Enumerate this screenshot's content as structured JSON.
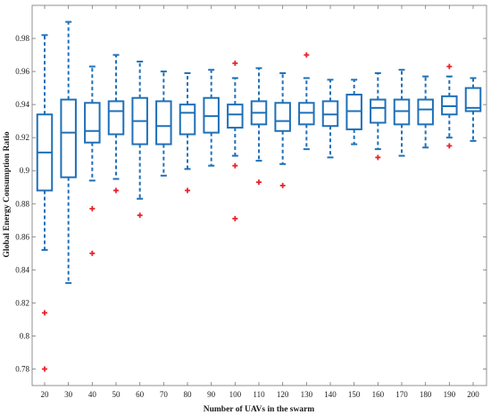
{
  "chart_data": {
    "type": "boxplot",
    "title": "",
    "xlabel": "Number of UAVs in the swarm",
    "ylabel": "Global Energy Consumption  Ratio",
    "ylim": [
      0.77,
      1.0
    ],
    "yticks": [
      0.78,
      0.8,
      0.82,
      0.84,
      0.86,
      0.88,
      0.9,
      0.92,
      0.94,
      0.96,
      0.98
    ],
    "ytick_labels": [
      "0.78",
      "0.8",
      "0.82",
      "0.84",
      "0.86",
      "0.88",
      "0.9",
      "0.92",
      "0.94",
      "0.96",
      "0.98"
    ],
    "grid": false,
    "colors": {
      "box": "#1f70b8",
      "outlier": "#e8232a",
      "axis": "#777777"
    },
    "categories": [
      "20",
      "30",
      "40",
      "50",
      "60",
      "70",
      "80",
      "90",
      "100",
      "110",
      "120",
      "130",
      "140",
      "150",
      "160",
      "170",
      "180",
      "190",
      "200"
    ],
    "boxes": [
      {
        "whisker_low": 0.852,
        "q1": 0.888,
        "median": 0.911,
        "q3": 0.934,
        "whisker_high": 0.982,
        "outliers": [
          0.814,
          0.78
        ]
      },
      {
        "whisker_low": 0.832,
        "q1": 0.896,
        "median": 0.923,
        "q3": 0.943,
        "whisker_high": 0.99,
        "outliers": []
      },
      {
        "whisker_low": 0.894,
        "q1": 0.917,
        "median": 0.924,
        "q3": 0.941,
        "whisker_high": 0.963,
        "outliers": [
          0.877,
          0.85
        ]
      },
      {
        "whisker_low": 0.895,
        "q1": 0.922,
        "median": 0.936,
        "q3": 0.942,
        "whisker_high": 0.97,
        "outliers": [
          0.888
        ]
      },
      {
        "whisker_low": 0.883,
        "q1": 0.916,
        "median": 0.93,
        "q3": 0.944,
        "whisker_high": 0.966,
        "outliers": [
          0.873
        ]
      },
      {
        "whisker_low": 0.897,
        "q1": 0.916,
        "median": 0.927,
        "q3": 0.942,
        "whisker_high": 0.96,
        "outliers": []
      },
      {
        "whisker_low": 0.901,
        "q1": 0.922,
        "median": 0.935,
        "q3": 0.94,
        "whisker_high": 0.959,
        "outliers": [
          0.888
        ]
      },
      {
        "whisker_low": 0.903,
        "q1": 0.923,
        "median": 0.933,
        "q3": 0.944,
        "whisker_high": 0.961,
        "outliers": []
      },
      {
        "whisker_low": 0.909,
        "q1": 0.926,
        "median": 0.934,
        "q3": 0.94,
        "whisker_high": 0.956,
        "outliers": [
          0.965,
          0.903,
          0.871
        ]
      },
      {
        "whisker_low": 0.906,
        "q1": 0.928,
        "median": 0.935,
        "q3": 0.942,
        "whisker_high": 0.962,
        "outliers": [
          0.893
        ]
      },
      {
        "whisker_low": 0.904,
        "q1": 0.924,
        "median": 0.93,
        "q3": 0.941,
        "whisker_high": 0.959,
        "outliers": [
          0.891
        ]
      },
      {
        "whisker_low": 0.913,
        "q1": 0.928,
        "median": 0.935,
        "q3": 0.941,
        "whisker_high": 0.956,
        "outliers": [
          0.97
        ]
      },
      {
        "whisker_low": 0.908,
        "q1": 0.927,
        "median": 0.934,
        "q3": 0.942,
        "whisker_high": 0.955,
        "outliers": []
      },
      {
        "whisker_low": 0.916,
        "q1": 0.925,
        "median": 0.936,
        "q3": 0.946,
        "whisker_high": 0.955,
        "outliers": []
      },
      {
        "whisker_low": 0.913,
        "q1": 0.929,
        "median": 0.938,
        "q3": 0.943,
        "whisker_high": 0.959,
        "outliers": [
          0.908
        ]
      },
      {
        "whisker_low": 0.909,
        "q1": 0.928,
        "median": 0.936,
        "q3": 0.943,
        "whisker_high": 0.961,
        "outliers": []
      },
      {
        "whisker_low": 0.914,
        "q1": 0.928,
        "median": 0.937,
        "q3": 0.943,
        "whisker_high": 0.957,
        "outliers": []
      },
      {
        "whisker_low": 0.92,
        "q1": 0.934,
        "median": 0.939,
        "q3": 0.945,
        "whisker_high": 0.957,
        "outliers": [
          0.963,
          0.915
        ]
      },
      {
        "whisker_low": 0.918,
        "q1": 0.936,
        "median": 0.938,
        "q3": 0.95,
        "whisker_high": 0.956,
        "outliers": []
      }
    ]
  }
}
